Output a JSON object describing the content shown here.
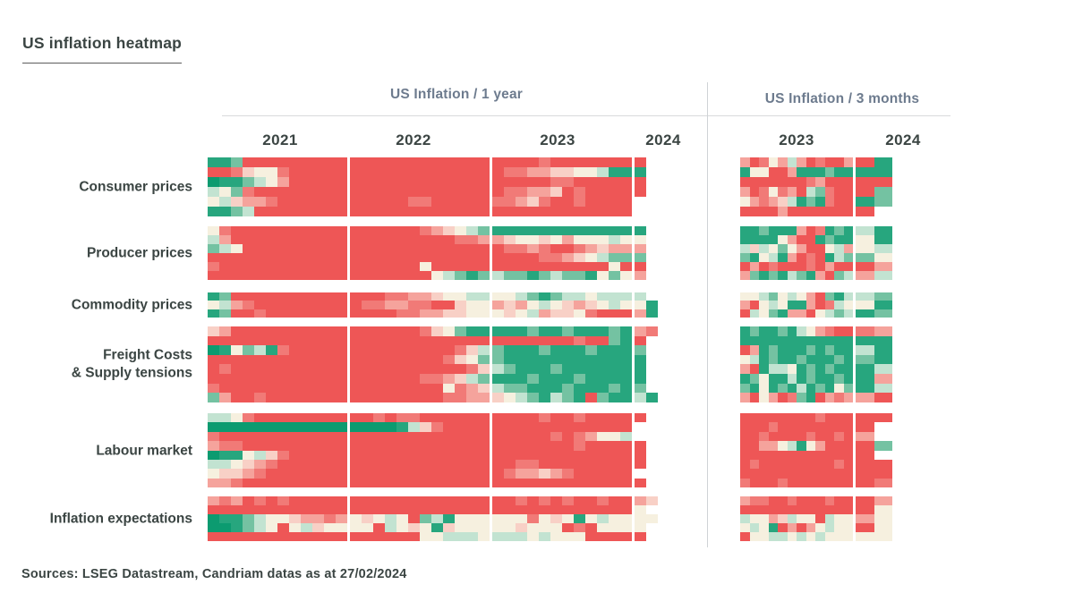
{
  "page": {
    "title": "US inflation heatmap",
    "footer": "Sources: LSEG Datastream, Candriam datas as at 27/02/2024"
  },
  "chart_data": {
    "type": "heatmap",
    "title": "US inflation heatmap",
    "source": "Sources: LSEG Datastream, Candriam datas as at 27/02/2024",
    "value_encoding": {
      "chars": "012345678",
      "meaning": "Each character is one monthly cell. value = digit - 4, scale -4..+4: -4 = strong disinflation (deep green), 0 = neutral (cream), +4 = strong inflation (deep red). '.' = no data (blank).",
      "blank": "."
    },
    "palette": {
      "0": "#0c9b70",
      "1": "#27a67e",
      "2": "#74c2a2",
      "3": "#c2e3d1",
      "4": "#f6f0df",
      "5": "#f8d0c6",
      "6": "#f5a39c",
      "7": "#f17a77",
      "8": "#ee5656"
    },
    "legend_position": "none",
    "grid": "off",
    "panels": [
      {
        "title": "US Inflation / 1 year",
        "years": [
          {
            "label": "2021",
            "cols": 12
          },
          {
            "label": "2022",
            "cols": 12
          },
          {
            "label": "2023",
            "cols": 12
          },
          {
            "label": "2024",
            "cols": 2
          }
        ],
        "blocks": [
          {
            "label": "Consumer prices",
            "rows": [
              "1128888888888888888888888888788888888.",
              "8875447888888888888888888776655443111.",
              "0112346888888888888888888888877888888.",
              "3427888888888888888888888776658788888.",
              "435667888888888887788888776578878888..",
              "112388888888888888888888888888888888.."
            ]
          },
          {
            "label": "Producer prices",
            "rows": [
              "4788888888888888887654321111111111111.",
              "3688888888888888888887766544546444344.",
              "2348888888888888888888888776788765666.",
              "8888888888888888888888888888776543222.",
              "7888888888888888884888888888888888488.",
              "8888888888888888888432123221232214246."
            ]
          },
          {
            "label": "Commodity prices",
            "rows": [
              "1288888888888887766544334432123343333.",
              "43678888888887766778854465643456543441",
              "12887888888888887766554445436554788861"
            ]
          },
          {
            "label": "Freight Costs\n& Supply tensions",
            "rows": [
              "56888888888888888875421111121121112167",
              "8888888888888888888888888888888788218.",
              "0142317888888888888887532111211121112.",
              "8888888888888888888875422111111111111.",
              "8788888888888888888888753211121111111.",
              "8888888888888888887765321112111211111.",
              "7888888888888888888847653221112111212.",
              "26887888888888888888776654321321821131"
            ]
          },
          {
            "label": "Labour market",
            "rows": [
              "3347888888888878778888888888788788888.",
              "000000000000000013578888888888888888..",
              "788888888888888888888888888887876443..",
              "6778888888888888888888888888888788888.",
              "0114357888888888888888888888888888888.",
              "3345678888888888888888888877888888888.",
              "455678888888888888888888876656788888..",
              "6678888888888888888888888888888888888."
            ]
          },
          {
            "label": "Inflation expectations",
            "rows": [
              "67687878888888888888888888787878878865",
              "8888888888888888888888888888888888884.",
              "01123445667645434823144444474541434444",
              "0012348435444483454154444454448784444.",
              "8888888888888888884433343334344488888."
            ]
          }
        ]
      },
      {
        "title": "US Inflation / 3 months",
        "years": [
          {
            "label": "2023",
            "cols": 12
          },
          {
            "label": "2024",
            "cols": 2
          }
        ],
        "blocks": [
          {
            "label": "Consumer prices",
            "rows": [
              "68746368788681",
              "14488611121111",
              "88888887688888",
              "68747683278882",
              "46765312178812",
              "8888688888888."
            ]
          },
          {
            "label": "Producer prices",
            "rows": [
              "11211168712131",
              "11114688121141",
              "35342468843643",
              "21431687813224",
              "86878887868886",
              "62121321682363"
            ]
          },
          {
            "label": "Commodity prices",
            "rows": [
              "44324346821332",
              "68434116873441",
              "83421668432312"
            ]
          },
          {
            "label": "Freight Costs\n& Supply tensions",
            "rows": [
              "12112134678876",
              "11111111111111",
              "86121112121131",
              "43121121112121",
              "68133412121113",
              "12411312112116",
              "21412131214213",
              "68468721867668"
            ]
          },
          {
            "label": "Labour market",
            "rows": [
              "88888888788888",
              "8887888888888.",
              "8878888788786.",
              "88664314688882",
              "8888888888888.",
              "87888888887888",
              "88888888888888",
              "78887888888887"
            ]
          },
          {
            "label": "Inflation expectations",
            "rows": [
              "67788788878886",
              "88888888888884",
              "34465344834464",
              "43418686434484",
              "84433434344444"
            ]
          }
        ]
      }
    ]
  }
}
